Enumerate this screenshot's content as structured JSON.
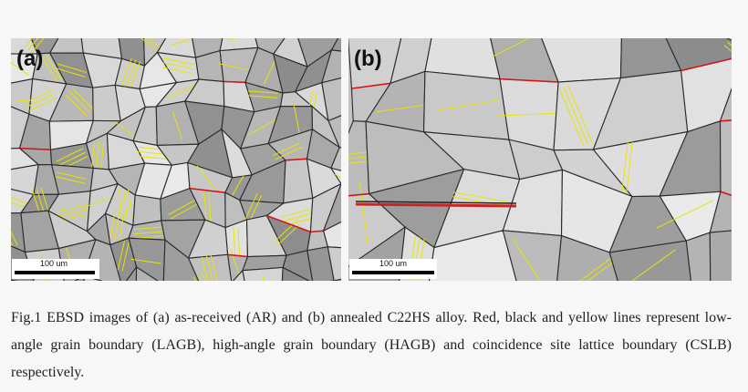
{
  "panels": [
    {
      "label": "(a)",
      "scale_bar": "100 um"
    },
    {
      "label": "(b)",
      "scale_bar": "100 um"
    }
  ],
  "caption": "Fig.1 EBSD images of (a) as-received (AR) and (b) annealed C22HS alloy. Red, black and yellow lines represent low-angle grain boundary (LAGB), high-angle grain boundary (HAGB) and coincidence site lattice boundary (CSLB) respectively."
}
